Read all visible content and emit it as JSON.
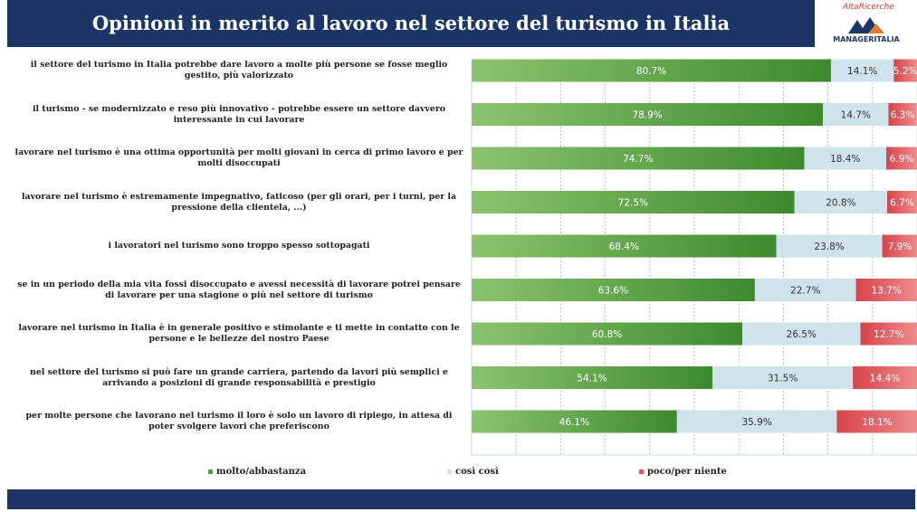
{
  "header": {
    "title": "Opinioni in merito al lavoro nel settore del turismo in Italia"
  },
  "logo": {
    "top": "AltaRicerche",
    "bottom": "MANAGERITALIA"
  },
  "chart_data": {
    "type": "bar",
    "orientation": "horizontal",
    "stacked": true,
    "percent": true,
    "xlim": [
      0,
      100
    ],
    "grid": true,
    "categories": [
      "il settore del turismo in Italia potrebbe dare lavoro a molte più persone se fosse meglio gestito, più valorizzato",
      "il turismo - se modernizzato e reso più innovativo -  potrebbe essere un settore davvero interessante in cui lavorare",
      "lavorare nel turismo è una ottima opportunità per molti giovani in cerca di primo lavoro e per molti disoccupati",
      "lavorare nel turismo è estremamente impegnativo, faticoso (per gli orari, per i turni, per la pressione della clientela, ...)",
      "i lavoratori nel turismo sono troppo spesso sottopagati",
      "se in un periodo della mia vita fossi disoccupato e avessi necessità di lavorare potrei pensare di lavorare per una stagione o più nel settore di turismo",
      "lavorare nel turismo in Italia è in generale positivo e stimolante e ti mette in contatto con le persone e le bellezze del nostro Paese",
      "nel settore del turismo si può fare un grande carriera, partendo da lavori più semplici e arrivando a posizioni di grande responsabilità e prestigio",
      "per molte persone che lavorano nel turismo il loro è solo un lavoro di ripiego, in attesa di poter svolgere lavori che preferiscono"
    ],
    "series": [
      {
        "name": "molto/abbastanza",
        "color": "#5e9b40",
        "values": [
          80.7,
          78.9,
          74.7,
          72.5,
          68.4,
          63.6,
          60.8,
          54.1,
          46.1
        ],
        "labels": [
          "80.7%",
          "78.9%",
          "74.7%",
          "72.5%",
          "68.4%",
          "63.6%",
          "60.8%",
          "54.1%",
          "46.1%"
        ]
      },
      {
        "name": "così così",
        "color": "#cfe3ec",
        "values": [
          14.1,
          14.7,
          18.4,
          20.8,
          23.8,
          22.7,
          26.5,
          31.5,
          35.9
        ],
        "labels": [
          "14.1%",
          "14.7%",
          "18.4%",
          "20.8%",
          "23.8%",
          "22.7%",
          "26.5%",
          "31.5%",
          "35.9%"
        ]
      },
      {
        "name": "poco/per niente",
        "color": "#e0585e",
        "values": [
          5.2,
          6.3,
          6.9,
          6.7,
          7.9,
          13.7,
          12.7,
          14.4,
          18.1
        ],
        "labels": [
          "5.2%",
          "6.3%",
          "6.9%",
          "6.7%",
          "7.9%",
          "13.7%",
          "12.7%",
          "14.4%",
          "18.1%"
        ]
      }
    ],
    "legend": "bottom"
  }
}
